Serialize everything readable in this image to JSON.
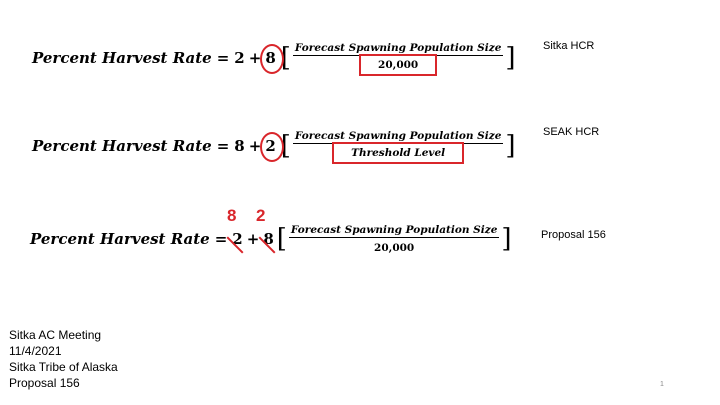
{
  "equations": [
    {
      "lhs": "Percent Harvest Rate",
      "equals": "=",
      "a": "2",
      "plus": "+",
      "b": "8",
      "numerator": "Forecast Spawning Population Size",
      "denominator": "20,000",
      "label": "Sitka HCR"
    },
    {
      "lhs": "Percent Harvest Rate",
      "equals": "=",
      "a": "8",
      "plus": "+",
      "b": "2",
      "numerator": "Forecast Spawning Population Size",
      "denominator": "Threshold Level",
      "label": "SEAK HCR"
    },
    {
      "lhs": "Percent Harvest Rate",
      "equals": "=",
      "a": "2",
      "plus": "+",
      "b": "8",
      "numerator": "Forecast Spawning Population Size",
      "denominator": "20,000",
      "label": "Proposal 156",
      "replacement_a": "8",
      "replacement_b": "2"
    }
  ],
  "footer": {
    "line1": "Sitka AC Meeting",
    "line2": "11/4/2021",
    "line3": "Sitka Tribe of Alaska",
    "line4": "Proposal 156"
  },
  "page_number": "1",
  "colors": {
    "highlight": "#d9262b"
  }
}
